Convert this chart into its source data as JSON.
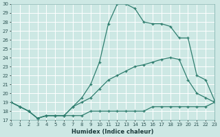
{
  "xlabel": "Humidex (Indice chaleur)",
  "bg_color": "#cde8e4",
  "grid_color": "#ffffff",
  "line_color": "#2e7d6e",
  "xlim": [
    0,
    23
  ],
  "ylim": [
    17,
    30
  ],
  "xticks": [
    0,
    1,
    2,
    3,
    4,
    5,
    6,
    7,
    8,
    9,
    10,
    11,
    12,
    13,
    14,
    15,
    16,
    17,
    18,
    19,
    20,
    21,
    22,
    23
  ],
  "yticks": [
    17,
    18,
    19,
    20,
    21,
    22,
    23,
    24,
    25,
    26,
    27,
    28,
    29,
    30
  ],
  "series": [
    {
      "x": [
        0,
        1,
        2,
        3,
        4,
        5,
        6,
        7,
        8,
        9,
        10,
        11,
        12,
        13,
        14,
        15,
        16,
        17,
        18,
        19,
        20,
        21,
        22,
        23
      ],
      "y": [
        19.0,
        18.5,
        18.0,
        17.2,
        17.5,
        17.5,
        17.5,
        17.5,
        17.5,
        18.0,
        18.0,
        18.0,
        18.0,
        18.0,
        18.0,
        18.0,
        18.5,
        18.5,
        18.5,
        18.5,
        18.5,
        18.5,
        18.5,
        19.0
      ]
    },
    {
      "x": [
        0,
        1,
        2,
        3,
        4,
        5,
        6,
        7,
        8,
        9,
        10,
        11,
        12,
        13,
        14,
        15,
        16,
        17,
        18,
        19,
        20,
        21,
        22,
        23
      ],
      "y": [
        19.0,
        18.5,
        18.0,
        17.2,
        17.5,
        17.5,
        17.5,
        18.5,
        19.0,
        19.5,
        20.5,
        21.5,
        22.0,
        22.5,
        23.0,
        23.2,
        23.5,
        23.8,
        24.0,
        23.8,
        21.5,
        20.0,
        19.5,
        19.0
      ]
    },
    {
      "x": [
        0,
        1,
        2,
        3,
        4,
        5,
        6,
        7,
        8,
        9,
        10,
        11,
        12,
        13,
        14,
        15,
        16,
        17,
        18,
        19,
        20,
        21,
        22,
        23
      ],
      "y": [
        19.0,
        18.5,
        18.0,
        17.2,
        17.5,
        17.5,
        17.5,
        18.5,
        19.5,
        21.0,
        23.5,
        27.8,
        30.0,
        30.0,
        29.5,
        28.0,
        27.8,
        27.8,
        27.5,
        26.2,
        26.2,
        22.0,
        21.5,
        19.2
      ]
    }
  ]
}
